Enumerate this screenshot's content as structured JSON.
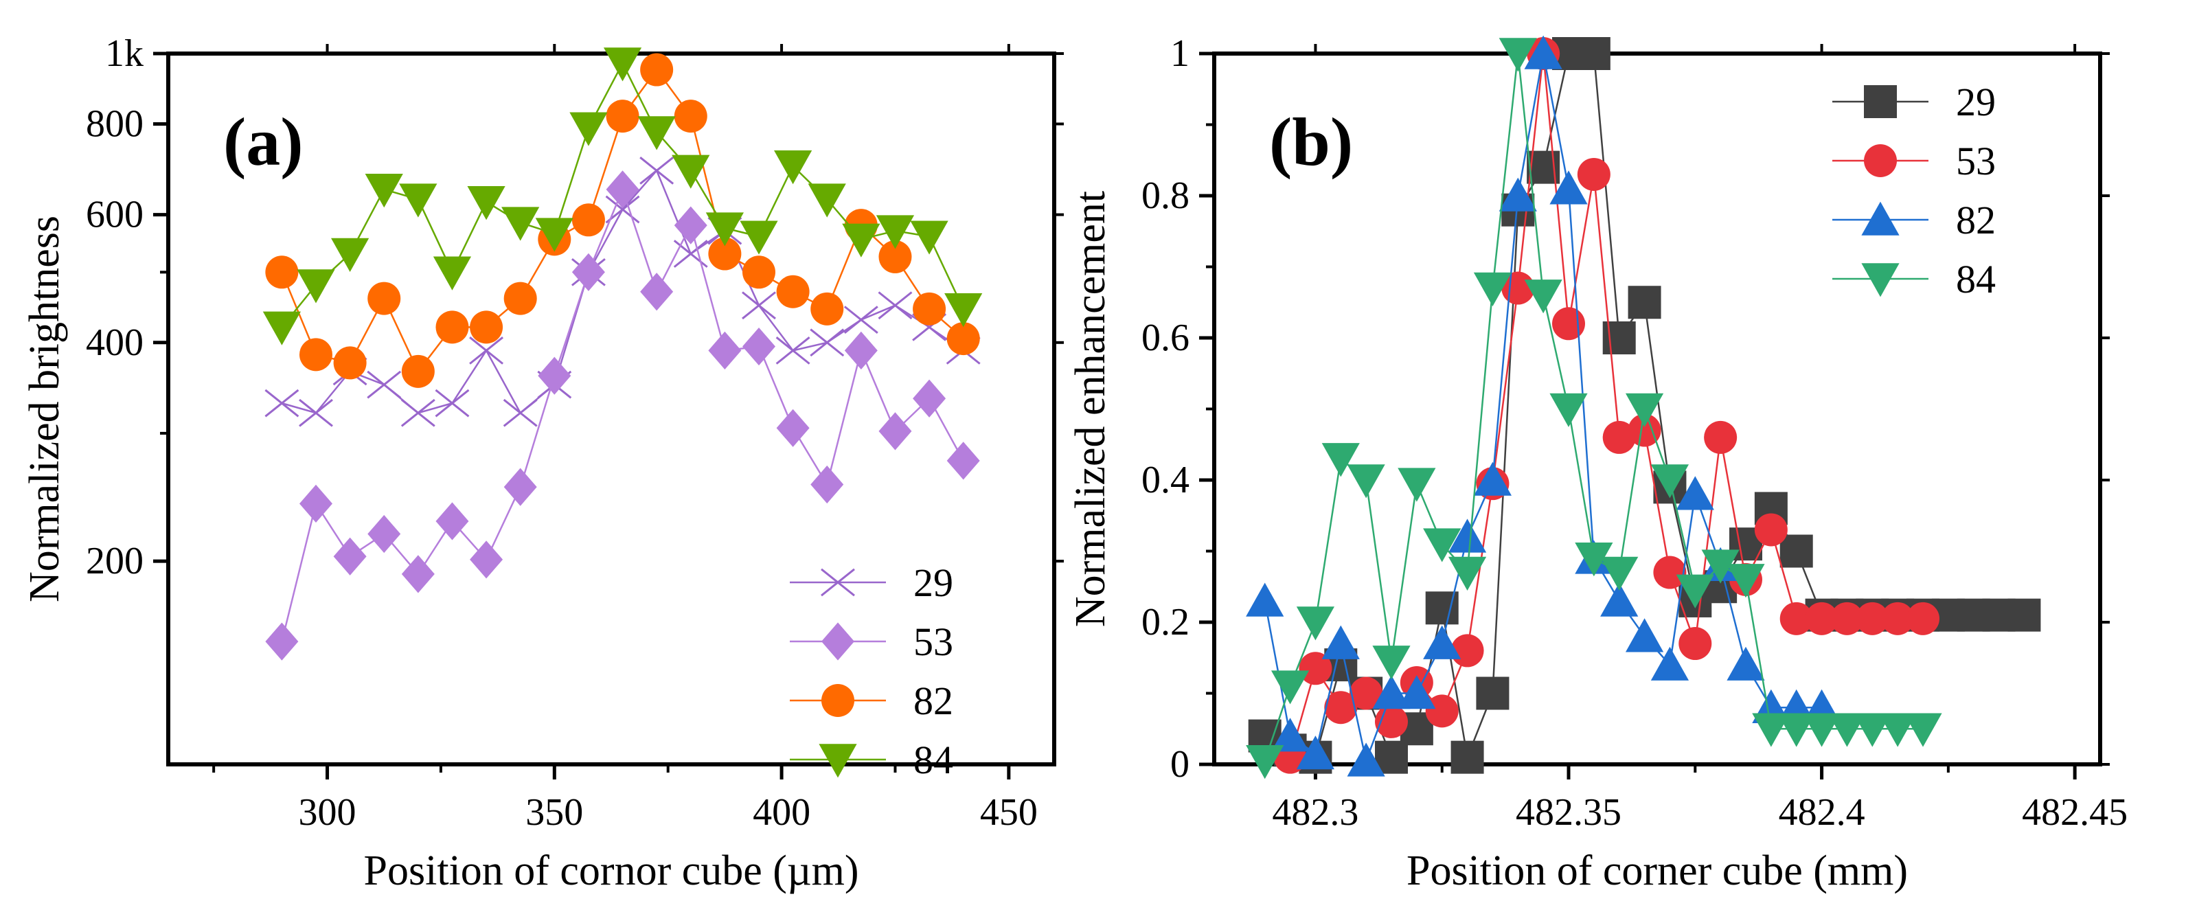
{
  "chart_data": [
    {
      "type": "line",
      "panel_label": "(a)",
      "xlabel": "Position of cornor cube (µm)",
      "ylabel": "Normalized brightness",
      "yscale": "log",
      "xlim": [
        265,
        460
      ],
      "ylim": [
        105,
        1000
      ],
      "xticks": [
        300,
        350,
        400,
        450
      ],
      "xtick_labels": [
        "300",
        "350",
        "400",
        "450"
      ],
      "yticks": [
        200,
        400,
        600,
        800,
        1000
      ],
      "ytick_labels": [
        "200",
        "400",
        "600",
        "800",
        "1k"
      ],
      "legend_position": "bottom-right",
      "x": [
        290,
        297.5,
        305,
        312.5,
        320,
        327.5,
        335,
        342.5,
        350,
        357.5,
        365,
        372.5,
        380,
        387.5,
        395,
        402.5,
        410,
        417.5,
        425,
        432.5,
        440
      ],
      "series": [
        {
          "name": "29",
          "marker": "x",
          "color": "#9966CC",
          "values": [
            330,
            320,
            365,
            350,
            320,
            330,
            390,
            320,
            350,
            500,
            610,
            690,
            530,
            570,
            450,
            390,
            400,
            430,
            450,
            420,
            390
          ]
        },
        {
          "name": "53",
          "marker": "diamond",
          "color": "#B57EDC",
          "values": [
            155,
            240,
            203,
            218,
            192,
            227,
            201,
            253,
            360,
            500,
            650,
            470,
            580,
            390,
            395,
            305,
            255,
            390,
            302,
            335,
            275
          ]
        },
        {
          "name": "82",
          "marker": "circle",
          "color": "#FF6A00",
          "values": [
            500,
            385,
            375,
            460,
            365,
            420,
            420,
            460,
            555,
            590,
            820,
            950,
            820,
            530,
            500,
            470,
            445,
            580,
            525,
            445,
            405
          ]
        },
        {
          "name": "84",
          "marker": "triangle-down",
          "color": "#66AA00",
          "values": [
            420,
            480,
            530,
            650,
            630,
            500,
            625,
            585,
            565,
            790,
            970,
            780,
            690,
            575,
            560,
            700,
            630,
            555,
            570,
            560,
            445
          ]
        }
      ]
    },
    {
      "type": "line",
      "panel_label": "(b)",
      "xlabel": "Position of corner cube (mm)",
      "ylabel": "Normalized enhancement",
      "yscale": "linear",
      "xlim": [
        482.28,
        482.455
      ],
      "ylim": [
        0,
        1
      ],
      "xticks": [
        482.3,
        482.35,
        482.4,
        482.45
      ],
      "xtick_labels": [
        "482.3",
        "482.35",
        "482.4",
        "482.45"
      ],
      "yticks": [
        0,
        0.2,
        0.4,
        0.6,
        0.8,
        1
      ],
      "ytick_labels": [
        "0",
        "0.2",
        "0.4",
        "0.6",
        "0.8",
        "1"
      ],
      "legend_position": "top-right",
      "series": [
        {
          "name": "29",
          "marker": "square",
          "color": "#404040",
          "x": [
            482.29,
            482.295,
            482.3,
            482.305,
            482.31,
            482.315,
            482.32,
            482.325,
            482.33,
            482.335,
            482.34,
            482.345,
            482.35,
            482.355,
            482.36,
            482.365,
            482.37,
            482.375,
            482.38,
            482.385,
            482.39,
            482.395,
            482.4,
            482.405,
            482.41,
            482.415,
            482.42,
            482.425,
            482.43,
            482.435,
            482.44
          ],
          "values": [
            0.04,
            0.02,
            0.01,
            0.14,
            0.1,
            0.01,
            0.05,
            0.22,
            0.01,
            0.1,
            0.78,
            0.84,
            1.0,
            1.0,
            0.6,
            0.65,
            0.39,
            0.23,
            0.25,
            0.31,
            0.36,
            0.3,
            0.21,
            0.21,
            0.21,
            0.21,
            0.21,
            0.21,
            0.21,
            0.21,
            0.21
          ]
        },
        {
          "name": "53",
          "marker": "circle",
          "color": "#E8323A",
          "x": [
            482.295,
            482.3,
            482.305,
            482.31,
            482.315,
            482.32,
            482.325,
            482.33,
            482.335,
            482.34,
            482.345,
            482.35,
            482.355,
            482.36,
            482.365,
            482.37,
            482.375,
            482.38,
            482.385,
            482.39,
            482.395,
            482.4,
            482.405,
            482.41,
            482.415,
            482.42
          ],
          "values": [
            0.01,
            0.135,
            0.08,
            0.1,
            0.06,
            0.115,
            0.075,
            0.16,
            0.395,
            0.67,
            1.0,
            0.62,
            0.83,
            0.46,
            0.47,
            0.27,
            0.17,
            0.46,
            0.26,
            0.33,
            0.205,
            0.205,
            0.205,
            0.205,
            0.205,
            0.205
          ]
        },
        {
          "name": "82",
          "marker": "triangle-up",
          "color": "#1F6FD1",
          "x": [
            482.29,
            482.295,
            482.3,
            482.305,
            482.31,
            482.315,
            482.32,
            482.325,
            482.33,
            482.335,
            482.34,
            482.345,
            482.35,
            482.355,
            482.36,
            482.365,
            482.37,
            482.375,
            482.38,
            482.385,
            482.39,
            482.395,
            482.4
          ],
          "values": [
            0.23,
            0.04,
            0.015,
            0.17,
            0.005,
            0.1,
            0.1,
            0.17,
            0.32,
            0.4,
            0.8,
            1.0,
            0.81,
            0.29,
            0.23,
            0.18,
            0.14,
            0.38,
            0.28,
            0.14,
            0.08,
            0.08,
            0.08
          ]
        },
        {
          "name": "84",
          "marker": "triangle-down",
          "color": "#2EAA70",
          "x": [
            482.29,
            482.295,
            482.3,
            482.305,
            482.31,
            482.315,
            482.32,
            482.325,
            482.33,
            482.335,
            482.34,
            482.345,
            482.35,
            482.355,
            482.36,
            482.365,
            482.37,
            482.375,
            482.38,
            482.385,
            482.39,
            482.395,
            482.4,
            482.405,
            482.41,
            482.415,
            482.42
          ],
          "values": [
            0.005,
            0.11,
            0.2,
            0.43,
            0.4,
            0.145,
            0.395,
            0.31,
            0.27,
            0.67,
            1.0,
            0.66,
            0.5,
            0.29,
            0.27,
            0.5,
            0.4,
            0.245,
            0.28,
            0.26,
            0.05,
            0.05,
            0.05,
            0.05,
            0.05,
            0.05,
            0.05
          ]
        }
      ]
    }
  ]
}
